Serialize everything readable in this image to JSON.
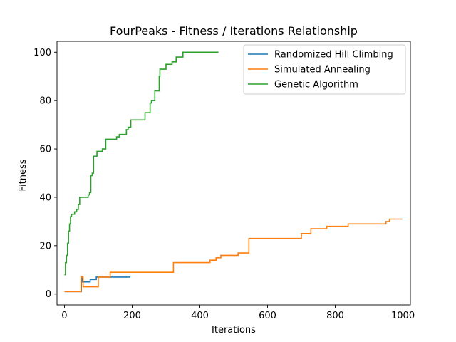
{
  "chart_data": {
    "type": "line",
    "title": "FourPeaks - Fitness / Iterations Relationship",
    "xlabel": "Iterations",
    "ylabel": "Fitness",
    "xlim": [
      -22,
      1022
    ],
    "ylim": [
      -4.5,
      104.5
    ],
    "xticks": [
      0,
      200,
      400,
      600,
      800,
      1000
    ],
    "yticks": [
      0,
      20,
      40,
      60,
      80,
      100
    ],
    "grid": false,
    "legend_position": "top-right",
    "series": [
      {
        "name": "Randomized Hill Climbing",
        "color": "#1f77b4",
        "steps": [
          [
            0,
            1
          ],
          [
            50,
            7
          ],
          [
            53,
            5
          ],
          [
            76,
            6
          ],
          [
            94,
            7
          ],
          [
            195,
            7
          ]
        ]
      },
      {
        "name": "Simulated Annealing",
        "color": "#ff7f0e",
        "steps": [
          [
            0,
            1
          ],
          [
            49,
            7
          ],
          [
            55,
            3
          ],
          [
            100,
            7
          ],
          [
            135,
            9
          ],
          [
            322,
            13
          ],
          [
            430,
            14
          ],
          [
            448,
            15
          ],
          [
            462,
            16
          ],
          [
            513,
            17
          ],
          [
            545,
            23
          ],
          [
            700,
            25
          ],
          [
            728,
            27
          ],
          [
            775,
            28
          ],
          [
            838,
            29
          ],
          [
            950,
            30
          ],
          [
            960,
            31
          ],
          [
            998,
            31
          ]
        ]
      },
      {
        "name": "Genetic Algorithm",
        "color": "#2ca02c",
        "steps": [
          [
            0,
            8
          ],
          [
            3,
            13
          ],
          [
            6,
            16
          ],
          [
            9,
            21
          ],
          [
            12,
            26
          ],
          [
            15,
            29
          ],
          [
            18,
            32
          ],
          [
            21,
            33
          ],
          [
            30,
            34
          ],
          [
            36,
            35
          ],
          [
            41,
            37
          ],
          [
            45,
            40
          ],
          [
            70,
            41
          ],
          [
            74,
            42
          ],
          [
            78,
            49
          ],
          [
            82,
            50
          ],
          [
            86,
            57
          ],
          [
            90,
            57
          ],
          [
            96,
            59
          ],
          [
            112,
            60
          ],
          [
            122,
            64
          ],
          [
            154,
            65
          ],
          [
            162,
            66
          ],
          [
            183,
            68
          ],
          [
            188,
            69
          ],
          [
            196,
            72
          ],
          [
            238,
            75
          ],
          [
            253,
            79
          ],
          [
            257,
            80
          ],
          [
            267,
            84
          ],
          [
            280,
            90
          ],
          [
            282,
            93
          ],
          [
            300,
            95
          ],
          [
            318,
            96
          ],
          [
            330,
            98
          ],
          [
            350,
            100
          ],
          [
            455,
            100
          ]
        ]
      }
    ]
  }
}
